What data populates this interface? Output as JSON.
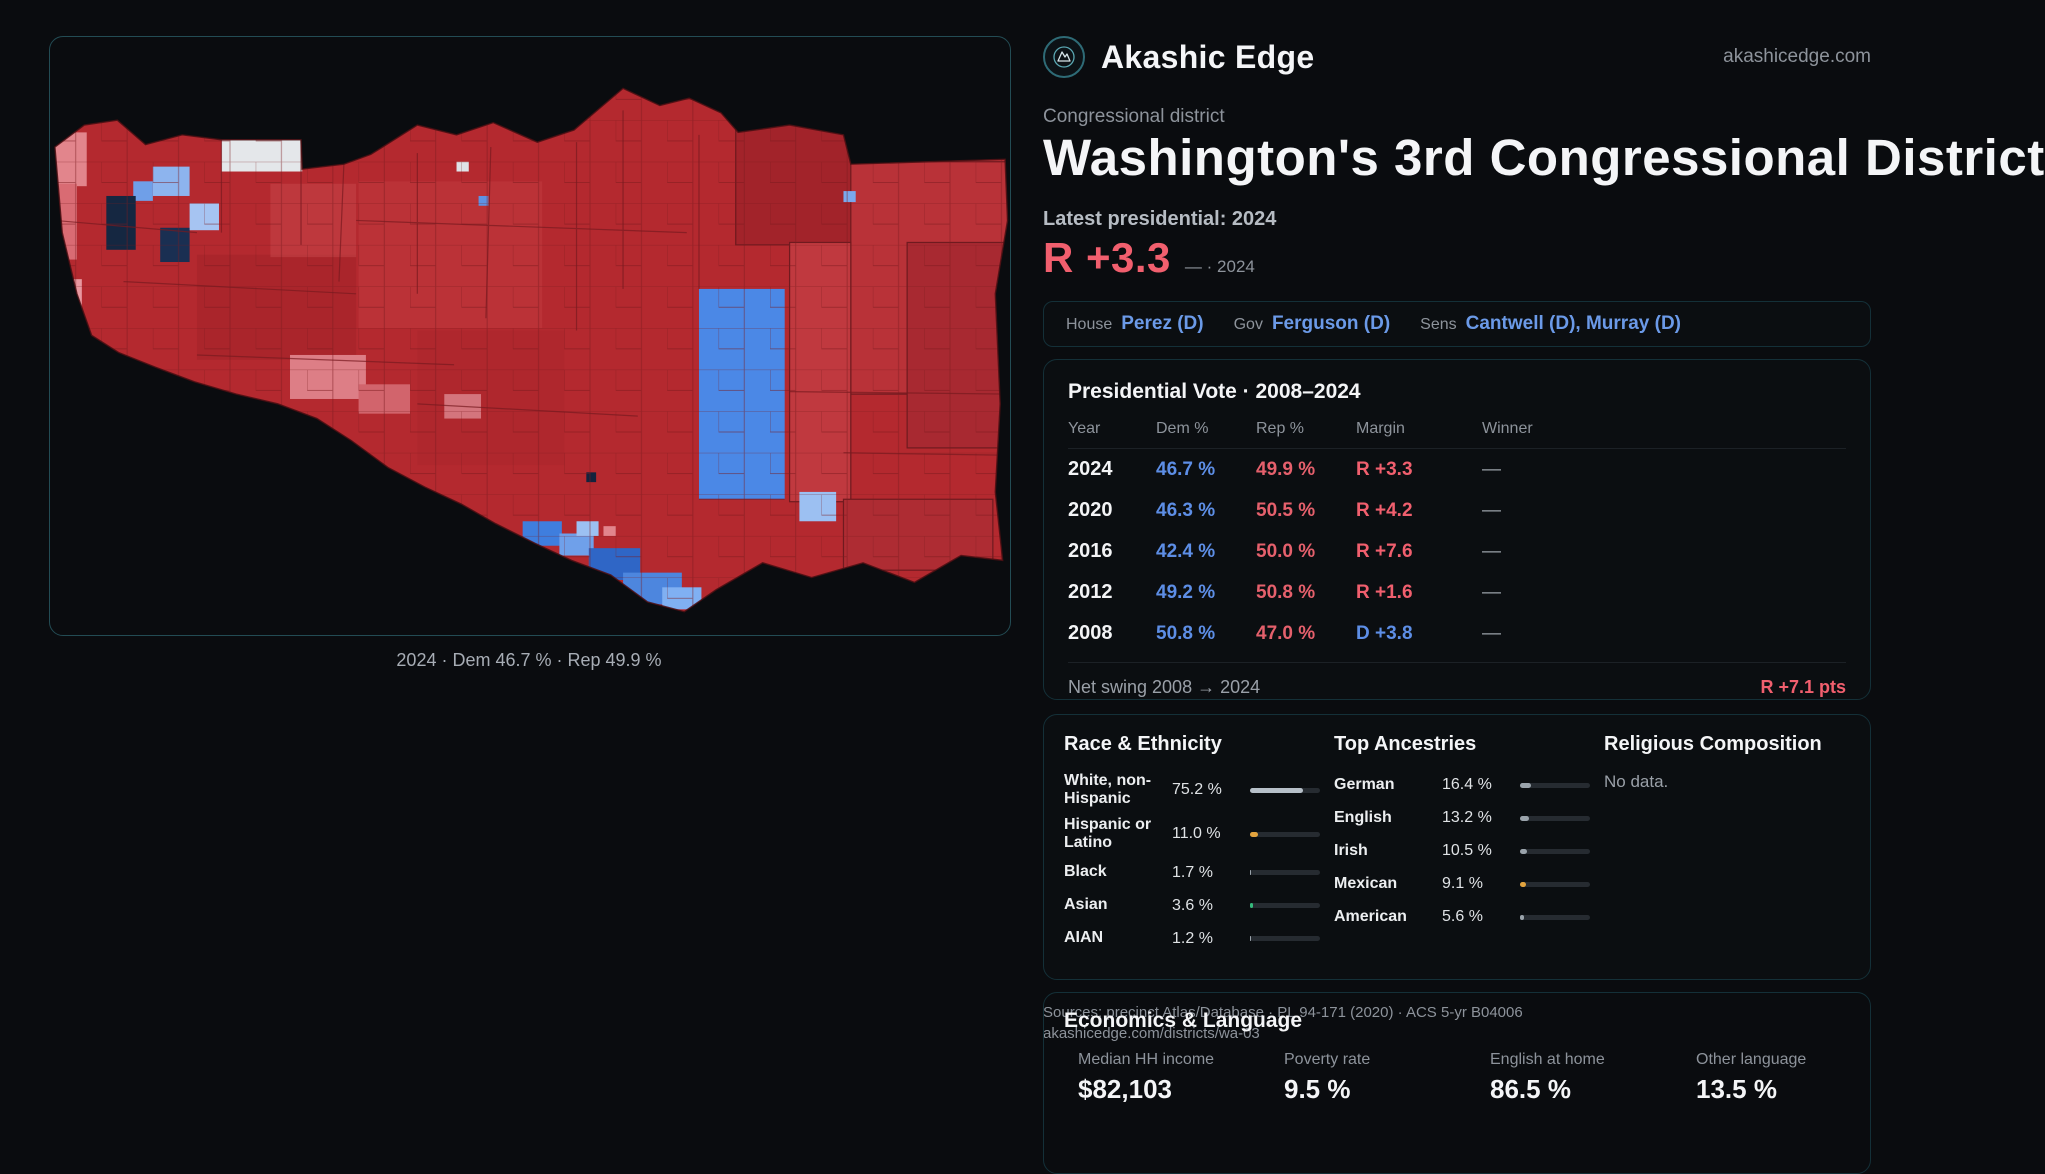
{
  "brand": {
    "name": "Akashic Edge",
    "domain": "akashicedge.com",
    "logo_icon": "mountain-compass-icon"
  },
  "header": {
    "kicker": "Congressional district",
    "title": "Washington's 3rd Congressional District",
    "latest_label": "Latest presidential: 2024",
    "margin_value": "R +3.3",
    "margin_note": "— · 2024"
  },
  "officials": {
    "house_label": "House",
    "house_value": "Perez (D)",
    "gov_label": "Gov",
    "gov_value": "Ferguson (D)",
    "sens_label": "Sens",
    "sens_value": "Cantwell (D), Murray (D)"
  },
  "map": {
    "caption": "2024 · Dem 46.7 % · Rep 49.9 %"
  },
  "pres_table": {
    "title": "Presidential Vote · 2008–2024",
    "columns": [
      "Year",
      "Dem %",
      "Rep %",
      "Margin",
      "Winner"
    ],
    "rows": [
      {
        "year": "2024",
        "dem": "46.7 %",
        "rep": "49.9 %",
        "margin": "R +3.3",
        "party": "R",
        "winner": "—"
      },
      {
        "year": "2020",
        "dem": "46.3 %",
        "rep": "50.5 %",
        "margin": "R +4.2",
        "party": "R",
        "winner": "—"
      },
      {
        "year": "2016",
        "dem": "42.4 %",
        "rep": "50.0 %",
        "margin": "R +7.6",
        "party": "R",
        "winner": "—"
      },
      {
        "year": "2012",
        "dem": "49.2 %",
        "rep": "50.8 %",
        "margin": "R +1.6",
        "party": "R",
        "winner": "—"
      },
      {
        "year": "2008",
        "dem": "50.8 %",
        "rep": "47.0 %",
        "margin": "D +3.8",
        "party": "D",
        "winner": "—"
      }
    ],
    "net_swing_label": "Net swing 2008 → 2024",
    "net_swing_value": "R +7.1 pts"
  },
  "race": {
    "title": "Race & Ethnicity",
    "rows": [
      {
        "label": "White, non-Hispanic",
        "value": "75.2 %",
        "pct": 75.2,
        "color": "#b7c0c9"
      },
      {
        "label": "Hispanic or Latino",
        "value": "11.0 %",
        "pct": 11.0,
        "color": "#e2a33e"
      },
      {
        "label": "Black",
        "value": "1.7 %",
        "pct": 1.7,
        "color": "#9aa3ab"
      },
      {
        "label": "Asian",
        "value": "3.6 %",
        "pct": 3.6,
        "color": "#35b97c"
      },
      {
        "label": "AIAN",
        "value": "1.2 %",
        "pct": 1.2,
        "color": "#9aa3ab"
      }
    ]
  },
  "ancestries": {
    "title": "Top Ancestries",
    "rows": [
      {
        "label": "German",
        "value": "16.4 %",
        "pct": 16.4,
        "color": "#9aa3ab"
      },
      {
        "label": "English",
        "value": "13.2 %",
        "pct": 13.2,
        "color": "#9aa3ab"
      },
      {
        "label": "Irish",
        "value": "10.5 %",
        "pct": 10.5,
        "color": "#9aa3ab"
      },
      {
        "label": "Mexican",
        "value": "9.1 %",
        "pct": 9.1,
        "color": "#e2a33e"
      },
      {
        "label": "American",
        "value": "5.6 %",
        "pct": 5.6,
        "color": "#9aa3ab"
      }
    ]
  },
  "religion": {
    "title": "Religious Composition",
    "empty": "No data."
  },
  "economics": {
    "title": "Economics & Language",
    "stats": [
      {
        "label": "Median HH income",
        "value": "$82,103"
      },
      {
        "label": "Poverty rate",
        "value": "9.5 %"
      },
      {
        "label": "English at home",
        "value": "86.5 %"
      },
      {
        "label": "Other language",
        "value": "13.5 %"
      }
    ]
  },
  "footer": {
    "sources": "Sources: precinct Atlas/Database · PL 94-171 (2020) · ACS 5-yr B04006",
    "permalink": "akashicedge.com/districts/wa-03"
  },
  "colors": {
    "accent_rep": "#f15f6e",
    "accent_dem": "#5d8ee6",
    "link_blue": "#6b9ae8"
  }
}
